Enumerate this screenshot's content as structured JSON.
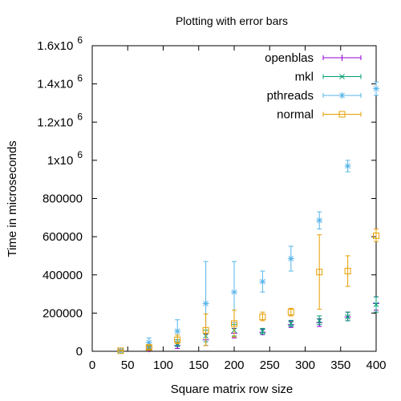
{
  "chart_data": {
    "type": "scatter",
    "title": "Plotting with error bars",
    "xlabel": "Square matrix row size",
    "ylabel": "Time in microseconds",
    "xlim": [
      0,
      400
    ],
    "ylim": [
      0,
      1600000
    ],
    "xticks": [
      {
        "value": 0,
        "label": "0"
      },
      {
        "value": 50,
        "label": "50"
      },
      {
        "value": 100,
        "label": "100"
      },
      {
        "value": 150,
        "label": "150"
      },
      {
        "value": 200,
        "label": "200"
      },
      {
        "value": 250,
        "label": "250"
      },
      {
        "value": 300,
        "label": "300"
      },
      {
        "value": 350,
        "label": "350"
      },
      {
        "value": 400,
        "label": "400"
      }
    ],
    "yticks": [
      {
        "value": 0,
        "base": "0",
        "exp": ""
      },
      {
        "value": 200000,
        "base": "200000",
        "exp": ""
      },
      {
        "value": 400000,
        "base": "400000",
        "exp": ""
      },
      {
        "value": 600000,
        "base": "600000",
        "exp": ""
      },
      {
        "value": 800000,
        "base": "800000",
        "exp": ""
      },
      {
        "value": 1000000,
        "base": "1x10",
        "exp": "6"
      },
      {
        "value": 1200000,
        "base": "1.2x10",
        "exp": "6"
      },
      {
        "value": 1400000,
        "base": "1.4x10",
        "exp": "6"
      },
      {
        "value": 1600000,
        "base": "1.6x10",
        "exp": "6"
      }
    ],
    "legend_position": "top-right",
    "series": [
      {
        "name": "openblas",
        "color": "#9400d3",
        "marker": "plus",
        "points": [
          {
            "x": 40,
            "y": 2000,
            "lo": 0,
            "hi": 4000
          },
          {
            "x": 80,
            "y": 12000,
            "lo": 5000,
            "hi": 22000
          },
          {
            "x": 120,
            "y": 30000,
            "lo": 15000,
            "hi": 50000
          },
          {
            "x": 160,
            "y": 60000,
            "lo": 30000,
            "hi": 90000
          },
          {
            "x": 200,
            "y": 95000,
            "lo": 70000,
            "hi": 120000
          },
          {
            "x": 240,
            "y": 100000,
            "lo": 88000,
            "hi": 115000
          },
          {
            "x": 280,
            "y": 140000,
            "lo": 125000,
            "hi": 158000
          },
          {
            "x": 320,
            "y": 150000,
            "lo": 130000,
            "hi": 170000
          },
          {
            "x": 360,
            "y": 180000,
            "lo": 160000,
            "hi": 205000
          },
          {
            "x": 400,
            "y": 250000,
            "lo": 215000,
            "hi": 285000
          }
        ]
      },
      {
        "name": "mkl",
        "color": "#009e73",
        "marker": "cross",
        "points": [
          {
            "x": 40,
            "y": 2000,
            "lo": 0,
            "hi": 4000
          },
          {
            "x": 80,
            "y": 20000,
            "lo": 10000,
            "hi": 30000
          },
          {
            "x": 120,
            "y": 40000,
            "lo": 25000,
            "hi": 60000
          },
          {
            "x": 160,
            "y": 80000,
            "lo": 50000,
            "hi": 110000
          },
          {
            "x": 200,
            "y": 110000,
            "lo": 80000,
            "hi": 140000
          },
          {
            "x": 240,
            "y": 105000,
            "lo": 90000,
            "hi": 120000
          },
          {
            "x": 280,
            "y": 145000,
            "lo": 130000,
            "hi": 162000
          },
          {
            "x": 320,
            "y": 160000,
            "lo": 140000,
            "hi": 185000
          },
          {
            "x": 360,
            "y": 180000,
            "lo": 160000,
            "hi": 205000
          },
          {
            "x": 400,
            "y": 245000,
            "lo": 205000,
            "hi": 285000
          }
        ]
      },
      {
        "name": "pthreads",
        "color": "#56b4e9",
        "marker": "star",
        "points": [
          {
            "x": 40,
            "y": 3000,
            "lo": 0,
            "hi": 8000
          },
          {
            "x": 80,
            "y": 45000,
            "lo": 20000,
            "hi": 70000
          },
          {
            "x": 120,
            "y": 105000,
            "lo": 50000,
            "hi": 165000
          },
          {
            "x": 160,
            "y": 250000,
            "lo": 30000,
            "hi": 470000
          },
          {
            "x": 200,
            "y": 310000,
            "lo": 150000,
            "hi": 470000
          },
          {
            "x": 240,
            "y": 365000,
            "lo": 310000,
            "hi": 420000
          },
          {
            "x": 280,
            "y": 485000,
            "lo": 420000,
            "hi": 550000
          },
          {
            "x": 320,
            "y": 685000,
            "lo": 640000,
            "hi": 730000
          },
          {
            "x": 360,
            "y": 970000,
            "lo": 940000,
            "hi": 1000000
          },
          {
            "x": 400,
            "y": 1375000,
            "lo": 1340000,
            "hi": 1410000
          }
        ]
      },
      {
        "name": "normal",
        "color": "#e69f00",
        "marker": "square",
        "points": [
          {
            "x": 40,
            "y": 3000,
            "lo": 0,
            "hi": 7000
          },
          {
            "x": 80,
            "y": 20000,
            "lo": 10000,
            "hi": 30000
          },
          {
            "x": 120,
            "y": 60000,
            "lo": 40000,
            "hi": 85000
          },
          {
            "x": 160,
            "y": 110000,
            "lo": 30000,
            "hi": 195000
          },
          {
            "x": 200,
            "y": 145000,
            "lo": 75000,
            "hi": 215000
          },
          {
            "x": 240,
            "y": 180000,
            "lo": 160000,
            "hi": 205000
          },
          {
            "x": 280,
            "y": 205000,
            "lo": 185000,
            "hi": 225000
          },
          {
            "x": 320,
            "y": 415000,
            "lo": 220000,
            "hi": 610000
          },
          {
            "x": 360,
            "y": 420000,
            "lo": 340000,
            "hi": 500000
          },
          {
            "x": 400,
            "y": 605000,
            "lo": 575000,
            "hi": 640000
          }
        ]
      }
    ]
  }
}
